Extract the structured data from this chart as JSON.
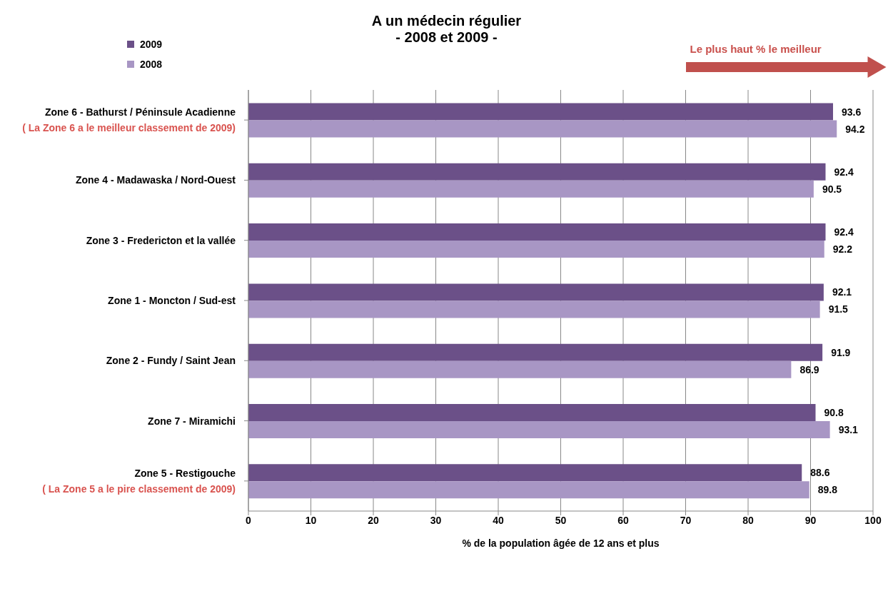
{
  "chart_data": {
    "type": "bar",
    "orientation": "horizontal",
    "title": "A un médecin régulier",
    "subtitle": "- 2008 et 2009 -",
    "xlabel": "% de la population âgée de 12 ans et plus",
    "categories": [
      "Zone 6 - Bathurst / Péninsule Acadienne",
      "Zone 4 - Madawaska / Nord-Ouest",
      "Zone 3 - Fredericton et la vallée",
      "Zone 1 - Moncton / Sud-est",
      "Zone 2 - Fundy / Saint Jean",
      "Zone 7 - Miramichi",
      "Zone 5 - Restigouche"
    ],
    "series": [
      {
        "name": "2009",
        "color": "#6b5088",
        "values": [
          93.6,
          92.4,
          92.4,
          92.1,
          91.9,
          90.8,
          88.6
        ]
      },
      {
        "name": "2008",
        "color": "#a896c4",
        "values": [
          94.2,
          90.5,
          92.2,
          91.5,
          86.9,
          93.1,
          89.8
        ]
      }
    ],
    "xlim": [
      0,
      100
    ],
    "xticks": [
      0,
      10,
      20,
      30,
      40,
      50,
      60,
      70,
      80,
      90,
      100
    ],
    "grid": "x",
    "legend": "top left",
    "data_labels": true,
    "annotations": [
      "( La Zone 6 a le meilleur classement de 2009)",
      "( La Zone 5 a le pire classement de 2009)",
      "Le plus haut % le meilleur"
    ]
  }
}
